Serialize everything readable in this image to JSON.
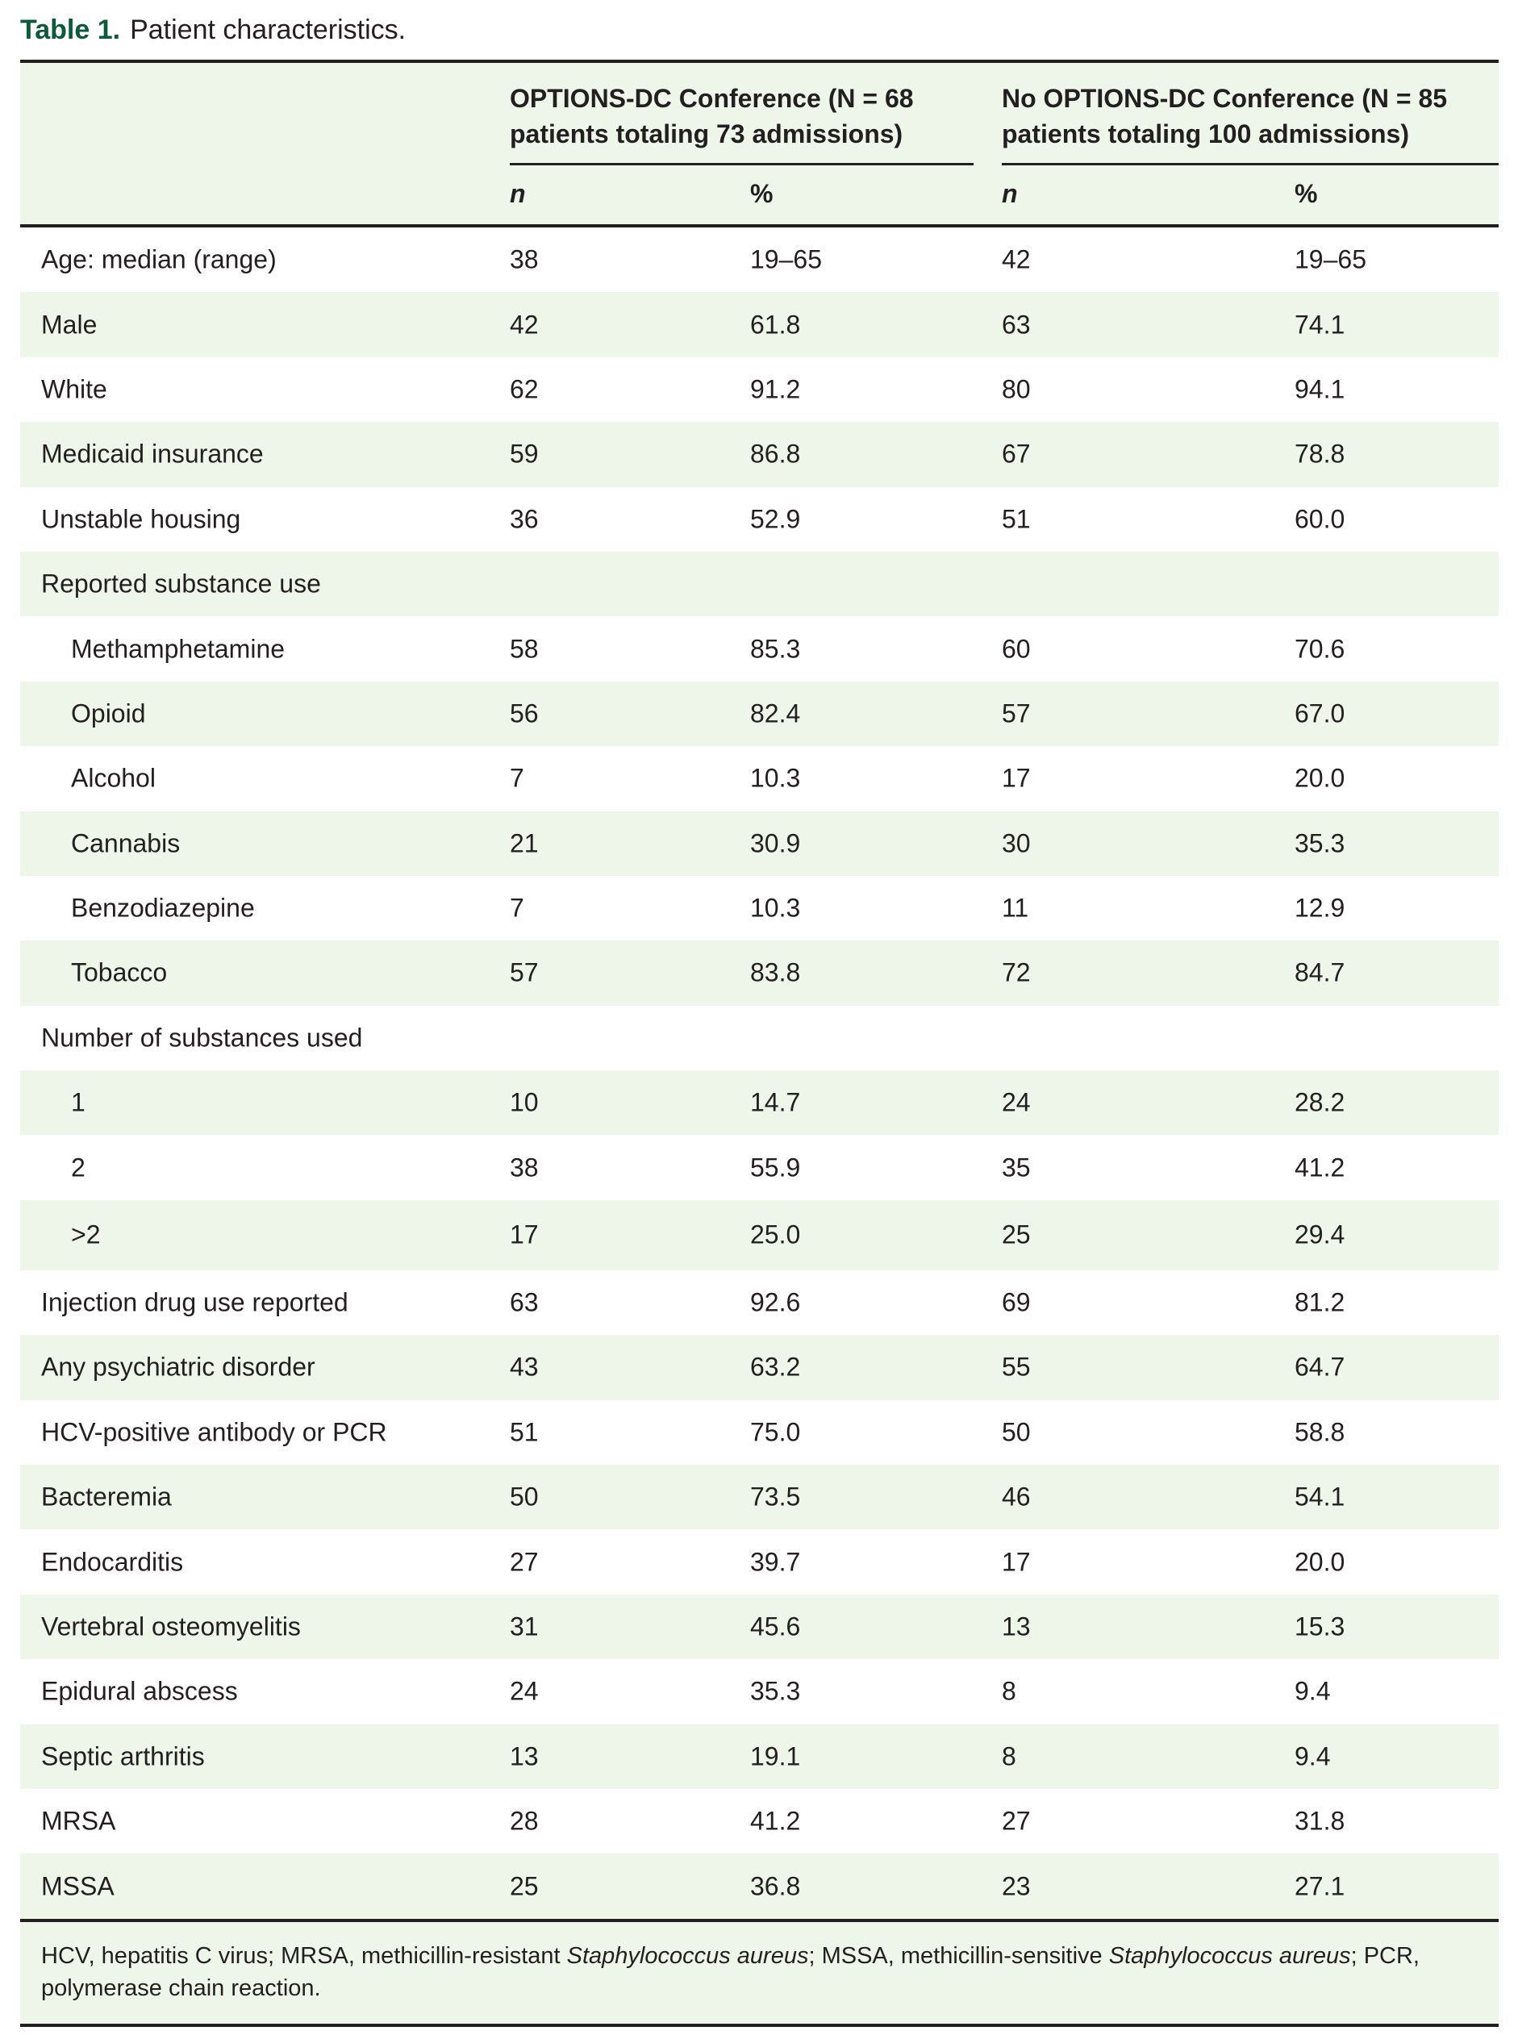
{
  "title": {
    "label": "Table 1.",
    "caption": "Patient characteristics."
  },
  "header": {
    "group1": "OPTIONS-DC Conference (N = 68 patients totaling 73 admissions)",
    "group2": "No OPTIONS-DC Conference (N = 85 patients totaling 100 admissions)",
    "n": "n",
    "pct": "%"
  },
  "rows": [
    {
      "label": "Age: median (range)",
      "n1": "38",
      "p1": "19–65",
      "n2": "42",
      "p2": "19–65",
      "indent": false
    },
    {
      "label": "Male",
      "n1": "42",
      "p1": "61.8",
      "n2": "63",
      "p2": "74.1",
      "indent": false
    },
    {
      "label": "White",
      "n1": "62",
      "p1": "91.2",
      "n2": "80",
      "p2": "94.1",
      "indent": false
    },
    {
      "label": "Medicaid insurance",
      "n1": "59",
      "p1": "86.8",
      "n2": "67",
      "p2": "78.8",
      "indent": false
    },
    {
      "label": "Unstable housing",
      "n1": "36",
      "p1": "52.9",
      "n2": "51",
      "p2": "60.0",
      "indent": false
    },
    {
      "label": "Reported substance use",
      "n1": "",
      "p1": "",
      "n2": "",
      "p2": "",
      "indent": false
    },
    {
      "label": "Methamphetamine",
      "n1": "58",
      "p1": "85.3",
      "n2": "60",
      "p2": "70.6",
      "indent": true
    },
    {
      "label": "Opioid",
      "n1": "56",
      "p1": "82.4",
      "n2": "57",
      "p2": "67.0",
      "indent": true
    },
    {
      "label": "Alcohol",
      "n1": "7",
      "p1": "10.3",
      "n2": "17",
      "p2": "20.0",
      "indent": true
    },
    {
      "label": "Cannabis",
      "n1": "21",
      "p1": "30.9",
      "n2": "30",
      "p2": "35.3",
      "indent": true
    },
    {
      "label": "Benzodiazepine",
      "n1": "7",
      "p1": "10.3",
      "n2": "11",
      "p2": "12.9",
      "indent": true
    },
    {
      "label": "Tobacco",
      "n1": "57",
      "p1": "83.8",
      "n2": "72",
      "p2": "84.7",
      "indent": true
    },
    {
      "label": "Number of substances used",
      "n1": "",
      "p1": "",
      "n2": "",
      "p2": "",
      "indent": false
    },
    {
      "label": "1",
      "n1": "10",
      "p1": "14.7",
      "n2": "24",
      "p2": "28.2",
      "indent": true
    },
    {
      "label": "2",
      "n1": "38",
      "p1": "55.9",
      "n2": "35",
      "p2": "41.2",
      "indent": true
    },
    {
      "label": ">2",
      "n1": "17",
      "p1": "25.0",
      "n2": "25",
      "p2": "29.4",
      "indent": true
    },
    {
      "label": "Injection drug use reported",
      "n1": "63",
      "p1": "92.6",
      "n2": "69",
      "p2": "81.2",
      "indent": false
    },
    {
      "label": "Any psychiatric disorder",
      "n1": "43",
      "p1": "63.2",
      "n2": "55",
      "p2": "64.7",
      "indent": false
    },
    {
      "label": "HCV-positive antibody or PCR",
      "n1": "51",
      "p1": "75.0",
      "n2": "50",
      "p2": "58.8",
      "indent": false
    },
    {
      "label": "Bacteremia",
      "n1": "50",
      "p1": "73.5",
      "n2": "46",
      "p2": "54.1",
      "indent": false
    },
    {
      "label": "Endocarditis",
      "n1": "27",
      "p1": "39.7",
      "n2": "17",
      "p2": "20.0",
      "indent": false
    },
    {
      "label": "Vertebral osteomyelitis",
      "n1": "31",
      "p1": "45.6",
      "n2": "13",
      "p2": "15.3",
      "indent": false
    },
    {
      "label": "Epidural abscess",
      "n1": "24",
      "p1": "35.3",
      "n2": "8",
      "p2": "9.4",
      "indent": false
    },
    {
      "label": "Septic arthritis",
      "n1": "13",
      "p1": "19.1",
      "n2": "8",
      "p2": "9.4",
      "indent": false
    },
    {
      "label": "MRSA",
      "n1": "28",
      "p1": "41.2",
      "n2": "27",
      "p2": "31.8",
      "indent": false
    },
    {
      "label": "MSSA",
      "n1": "25",
      "p1": "36.8",
      "n2": "23",
      "p2": "27.1",
      "indent": false
    }
  ],
  "footnote": {
    "a": "HCV, hepatitis C virus; MRSA, methicillin-resistant ",
    "b": "Staphylococcus aureus",
    "c": "; MSSA, methicillin-sensitive ",
    "d": "Staphylococcus aureus",
    "e": "; PCR, polymerase chain reaction."
  },
  "colors": {
    "accent": "#0d5a3a",
    "stripe": "#eef6ea"
  }
}
